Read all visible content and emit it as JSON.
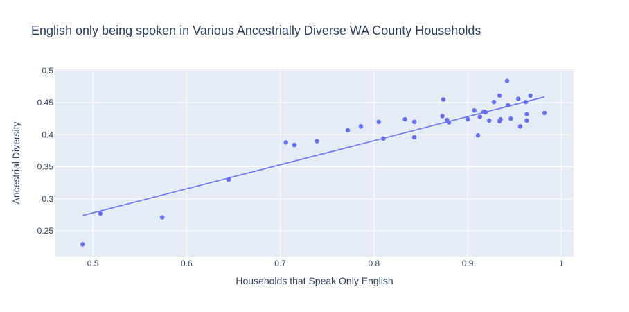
{
  "chart_data": {
    "type": "scatter",
    "title": "English only being spoken in Various Ancestrially Diverse WA County Households",
    "xlabel": "Households that Speak Only English",
    "ylabel": "Ancestrial Diversity",
    "xlim": [
      0.46,
      1.013
    ],
    "ylim": [
      0.21,
      0.502
    ],
    "xticks": [
      0.5,
      0.6,
      0.7,
      0.8,
      0.9,
      1
    ],
    "xtick_labels": [
      "0.5",
      "0.6",
      "0.7",
      "0.8",
      "0.9",
      "1"
    ],
    "yticks": [
      0.25,
      0.3,
      0.35,
      0.4,
      0.45,
      0.5
    ],
    "ytick_labels": [
      "0.25",
      "0.3",
      "0.35",
      "0.4",
      "0.45",
      "0.5"
    ],
    "grid": true,
    "colors": {
      "marker": "#636efa",
      "plot_bg": "#e5ecf6",
      "grid": "#ffffff",
      "text": "#2a3f5f"
    },
    "points": [
      {
        "x": 0.489,
        "y": 0.229
      },
      {
        "x": 0.508,
        "y": 0.277
      },
      {
        "x": 0.574,
        "y": 0.271
      },
      {
        "x": 0.645,
        "y": 0.33
      },
      {
        "x": 0.706,
        "y": 0.388
      },
      {
        "x": 0.715,
        "y": 0.384
      },
      {
        "x": 0.739,
        "y": 0.39
      },
      {
        "x": 0.772,
        "y": 0.407
      },
      {
        "x": 0.786,
        "y": 0.413
      },
      {
        "x": 0.805,
        "y": 0.42
      },
      {
        "x": 0.81,
        "y": 0.394
      },
      {
        "x": 0.833,
        "y": 0.424
      },
      {
        "x": 0.843,
        "y": 0.42
      },
      {
        "x": 0.843,
        "y": 0.396
      },
      {
        "x": 0.873,
        "y": 0.429
      },
      {
        "x": 0.874,
        "y": 0.455
      },
      {
        "x": 0.878,
        "y": 0.423
      },
      {
        "x": 0.88,
        "y": 0.419
      },
      {
        "x": 0.9,
        "y": 0.424
      },
      {
        "x": 0.907,
        "y": 0.438
      },
      {
        "x": 0.911,
        "y": 0.399
      },
      {
        "x": 0.913,
        "y": 0.428
      },
      {
        "x": 0.917,
        "y": 0.436
      },
      {
        "x": 0.919,
        "y": 0.435
      },
      {
        "x": 0.923,
        "y": 0.422
      },
      {
        "x": 0.928,
        "y": 0.451
      },
      {
        "x": 0.934,
        "y": 0.421
      },
      {
        "x": 0.935,
        "y": 0.424
      },
      {
        "x": 0.934,
        "y": 0.461
      },
      {
        "x": 0.942,
        "y": 0.484
      },
      {
        "x": 0.943,
        "y": 0.446
      },
      {
        "x": 0.946,
        "y": 0.425
      },
      {
        "x": 0.954,
        "y": 0.456
      },
      {
        "x": 0.956,
        "y": 0.413
      },
      {
        "x": 0.962,
        "y": 0.451
      },
      {
        "x": 0.963,
        "y": 0.432
      },
      {
        "x": 0.963,
        "y": 0.422
      },
      {
        "x": 0.967,
        "y": 0.461
      },
      {
        "x": 0.982,
        "y": 0.434
      }
    ],
    "trendline": {
      "x": [
        0.489,
        0.982
      ],
      "y": [
        0.274,
        0.459
      ]
    }
  }
}
